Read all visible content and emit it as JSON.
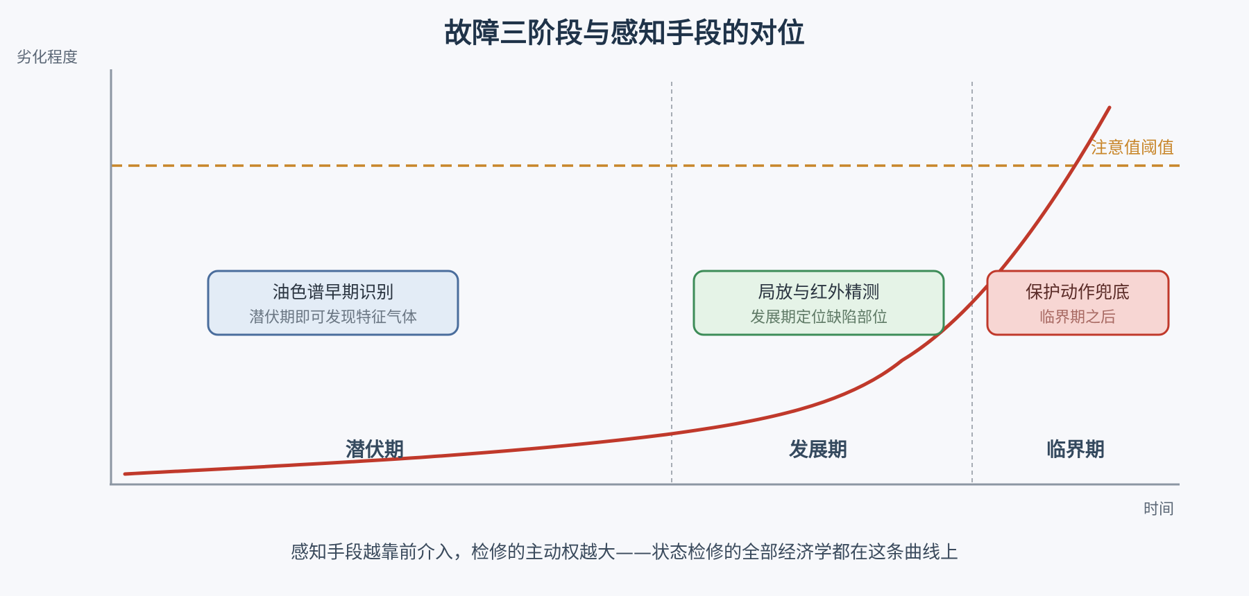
{
  "title": "故障三阶段与感知手段的对位",
  "y_axis_label": "劣化程度",
  "x_axis_label": "时间",
  "threshold_label": "注意值阈值",
  "stages": [
    "潜伏期",
    "发展期",
    "临界期"
  ],
  "methods": [
    {
      "title": "油色谱早期识别",
      "subtitle": "潜伏期即可发现特征气体"
    },
    {
      "title": "局放与红外精测",
      "subtitle": "发展期定位缺陷部位"
    },
    {
      "title": "保护动作兜底",
      "subtitle": "临界期之后"
    }
  ],
  "caption": "感知手段越靠前介入，检修的主动权越大——状态检修的全部经济学都在这条曲线上"
}
